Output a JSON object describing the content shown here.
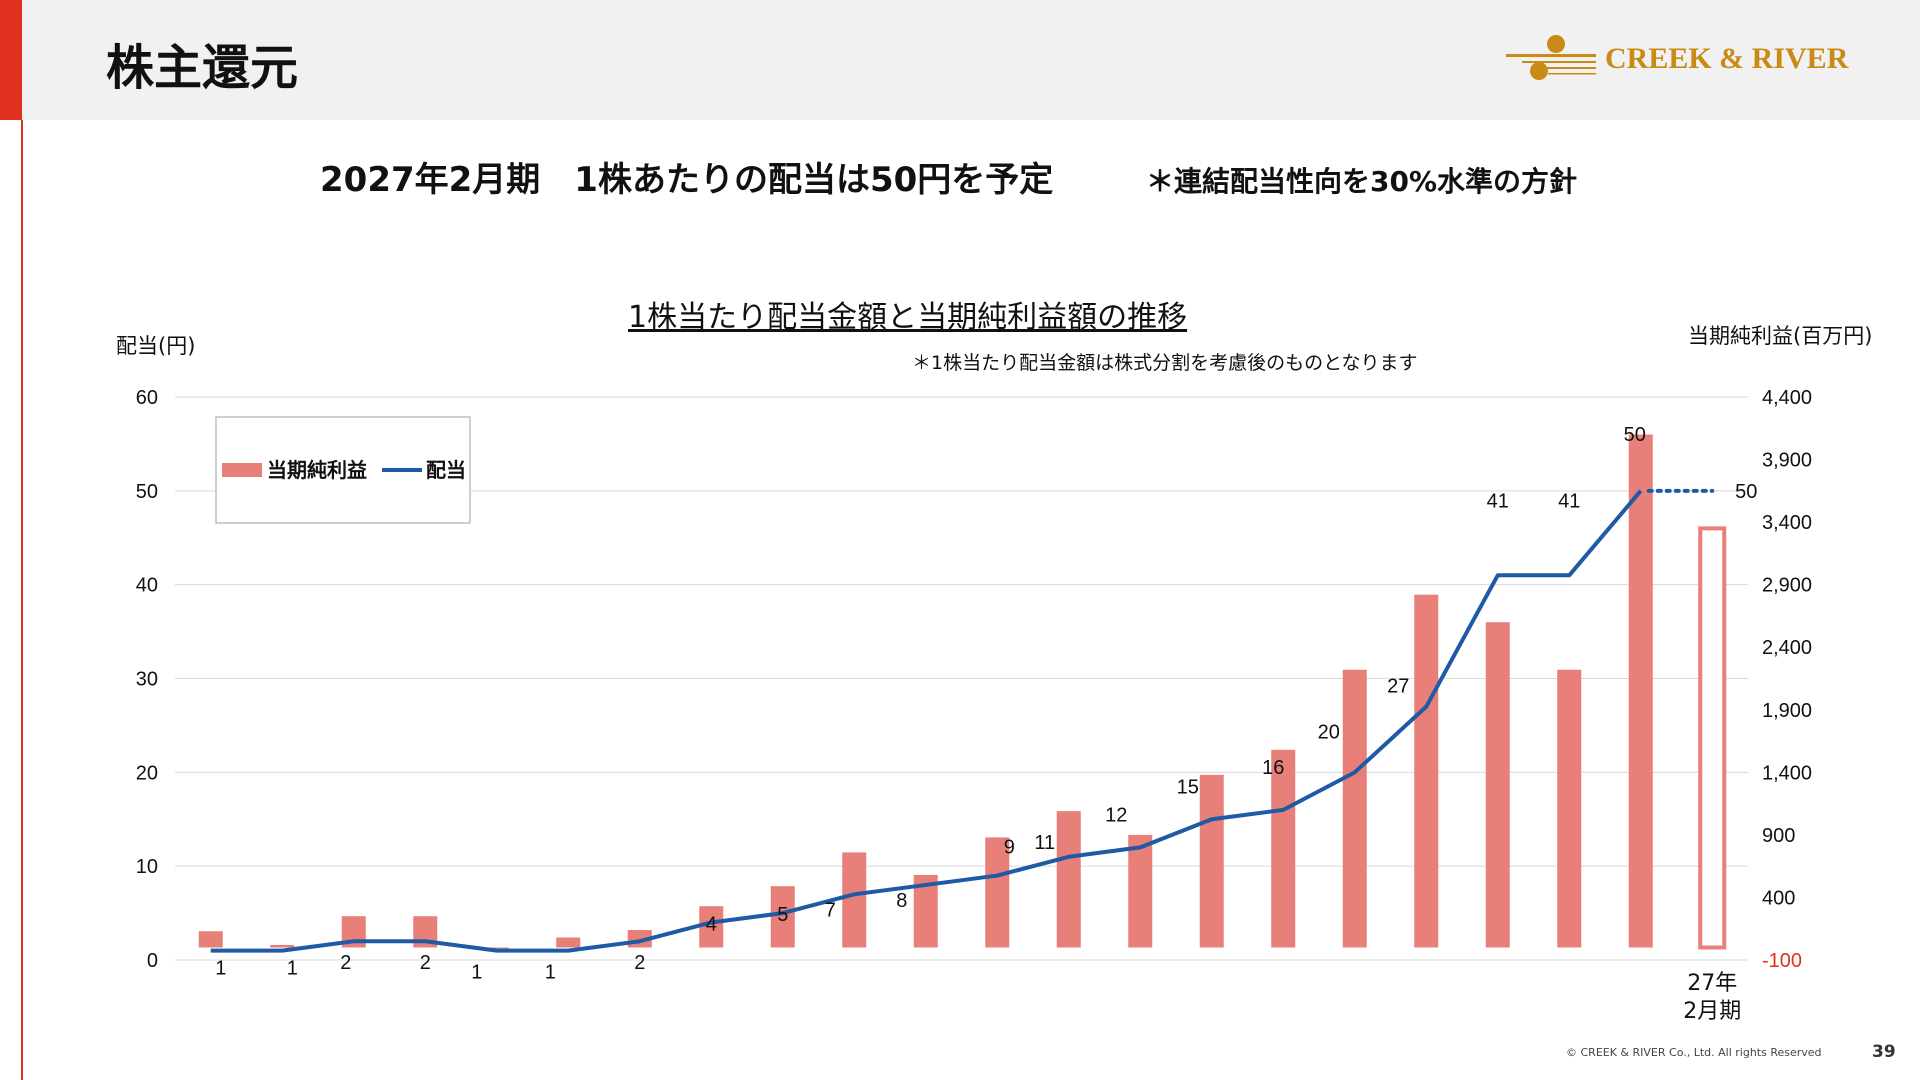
{
  "page": {
    "title": "株主還元",
    "headline": "2027年2月期　1株あたりの配当は50円を予定",
    "headline_note": "＊連結配当性向を30%水準の方針",
    "copyright": "© CREEK & RIVER Co., Ltd. All rights Reserved",
    "page_number": "39",
    "logo_text": "CREEK & RIVER"
  },
  "colors": {
    "accent": "#e0301e",
    "bar": "#e87f78",
    "line": "#1f5aa6",
    "logo": "#c98a16",
    "negative_tick": "#e0301e"
  },
  "chart_data": {
    "type": "bar",
    "title": "1株当たり配当金額と当期純利益額の推移",
    "note": "＊1株当たり配当金額は株式分割を考慮後のものとなります",
    "ylabel_left": "配当(円)",
    "ylabel_right": "当期純利益(百万円)",
    "ylim_left": [
      0,
      60
    ],
    "yticks_left": [
      "0",
      "10",
      "20",
      "30",
      "40",
      "50",
      "60"
    ],
    "ylim_right": [
      -100,
      4400
    ],
    "yticks_right": [
      "-100",
      "400",
      "900",
      "1,400",
      "1,900",
      "2,400",
      "2,900",
      "3,400",
      "3,900",
      "4,400"
    ],
    "grid": true,
    "legend": {
      "placement": "top-left",
      "entries": [
        "当期純利益",
        "配当"
      ]
    },
    "category_label_last": [
      "27年",
      "2月期"
    ],
    "series": [
      {
        "name": "当期純利益",
        "kind": "bar",
        "axis": "right",
        "values": [
          130,
          20,
          250,
          250,
          -30,
          80,
          140,
          330,
          490,
          760,
          580,
          880,
          1090,
          900,
          1380,
          1580,
          2220,
          2820,
          2600,
          2220,
          4100
        ],
        "forecast_value": 3350
      },
      {
        "name": "配当",
        "kind": "line",
        "axis": "left",
        "values": [
          1,
          1,
          2,
          2,
          1,
          1,
          2,
          4,
          5,
          7,
          8,
          9,
          11,
          12,
          15,
          16,
          20,
          27,
          41,
          41,
          50
        ],
        "labels": [
          "1",
          "1",
          "2",
          "2",
          "1",
          "1",
          "2",
          "4",
          "5",
          "7",
          "8",
          "9",
          "11",
          "12",
          "15",
          "16",
          "20",
          "27",
          "41",
          "41",
          "50"
        ],
        "forecast_value": 50,
        "forecast_label": "50"
      }
    ]
  }
}
